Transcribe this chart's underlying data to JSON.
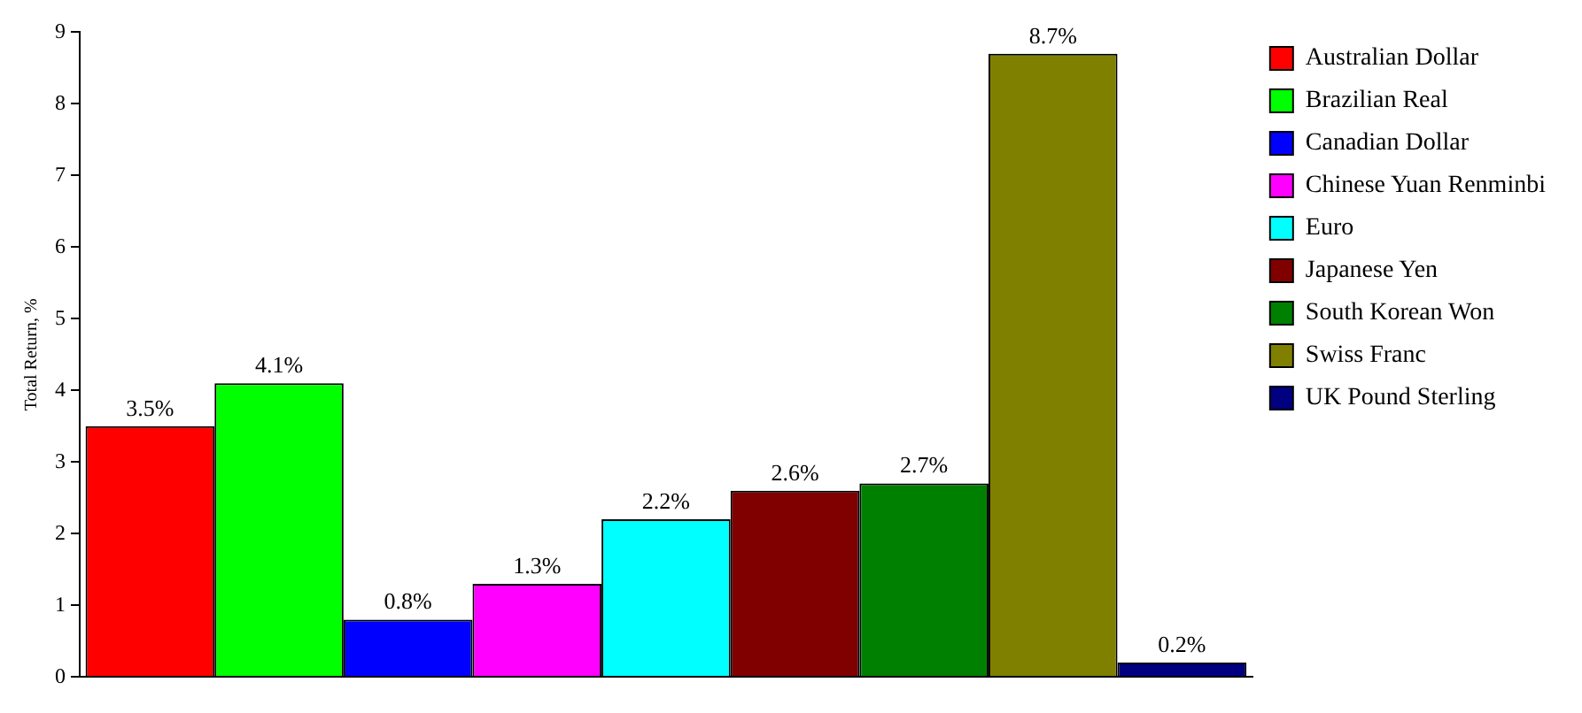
{
  "chart_data": {
    "type": "bar",
    "ylabel": "Total Return, %",
    "categories": [
      null
    ],
    "series": [
      {
        "name": "Australian Dollar",
        "color": "#ff0000",
        "values": [
          3.5
        ],
        "value_labels": [
          "3.5%"
        ]
      },
      {
        "name": "Brazilian Real",
        "color": "#00ff00",
        "values": [
          4.1
        ],
        "value_labels": [
          "4.1%"
        ]
      },
      {
        "name": "Canadian Dollar",
        "color": "#0000ff",
        "values": [
          0.8
        ],
        "value_labels": [
          "0.8%"
        ]
      },
      {
        "name": "Chinese Yuan Renminbi",
        "color": "#ff00ff",
        "values": [
          1.3
        ],
        "value_labels": [
          "1.3%"
        ]
      },
      {
        "name": "Euro",
        "color": "#00ffff",
        "values": [
          2.2
        ],
        "value_labels": [
          "2.2%"
        ]
      },
      {
        "name": "Japanese Yen",
        "color": "#800000",
        "values": [
          2.6
        ],
        "value_labels": [
          "2.6%"
        ]
      },
      {
        "name": "South Korean Won",
        "color": "#008000",
        "values": [
          2.7
        ],
        "value_labels": [
          "2.7%"
        ]
      },
      {
        "name": "Swiss Franc",
        "color": "#808000",
        "values": [
          8.7
        ],
        "value_labels": [
          "8.7%"
        ]
      },
      {
        "name": "UK Pound Sterling",
        "color": "#000080",
        "values": [
          0.2
        ],
        "value_labels": [
          "0.2%"
        ]
      }
    ],
    "ylim": [
      0,
      9
    ],
    "yticks": [
      0,
      1,
      2,
      3,
      4,
      5,
      6,
      7,
      8,
      9
    ],
    "grid": false,
    "legend": "right"
  }
}
